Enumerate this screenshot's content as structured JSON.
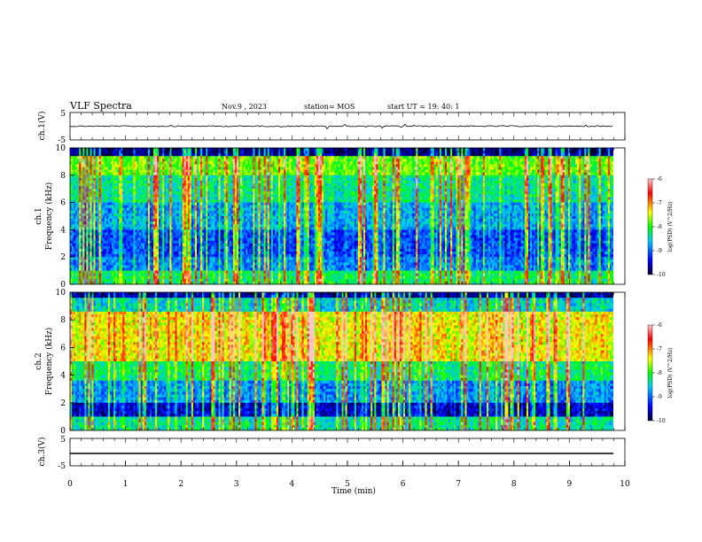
{
  "header": {
    "title": "VLF Spectra",
    "date": "Nov.9 , 2023",
    "station": "station= MOS",
    "start": "start UT = 19: 40: 1"
  },
  "chart_data": [
    {
      "type": "line",
      "name": "ch1-waveform",
      "ylabel": "ch.1(V)",
      "ylim": [
        -5,
        5
      ],
      "yticks": [
        "5",
        "-5"
      ],
      "xlim": [
        0,
        10
      ],
      "note_level": 0
    },
    {
      "type": "heatmap",
      "name": "ch1-spectrogram",
      "ylabel_top": "ch.1",
      "ylabel": "Frequency (kHz)",
      "ylim": [
        0,
        10
      ],
      "yticks": [
        "0",
        "2",
        "4",
        "6",
        "8",
        "10"
      ],
      "xlim": [
        0,
        10
      ],
      "colorbar": {
        "label": "log(PSD) (V^2/Hz)",
        "range": [
          -10,
          -6
        ],
        "ticks": [
          "-6",
          "-7",
          "-8",
          "-9",
          "-10"
        ],
        "colors": [
          "#000030",
          "#0000ff",
          "#00c8ff",
          "#00ff00",
          "#ffff00",
          "#ff0000",
          "#ffc8c8"
        ]
      }
    },
    {
      "type": "heatmap",
      "name": "ch2-spectrogram",
      "ylabel_top": "ch.2",
      "ylabel": "Frequency (kHz)",
      "ylim": [
        0,
        10
      ],
      "yticks": [
        "0",
        "2",
        "4",
        "6",
        "8",
        "10"
      ],
      "xlim": [
        0,
        10
      ],
      "colorbar": {
        "label": "log(PSD) (V^2/Hz)",
        "range": [
          -10,
          -6
        ],
        "ticks": [
          "-6",
          "-7",
          "-8",
          "-9",
          "-10"
        ],
        "colors": [
          "#000030",
          "#0000ff",
          "#00c8ff",
          "#00ff00",
          "#ffff00",
          "#ff0000",
          "#ffc8c8"
        ]
      }
    },
    {
      "type": "line",
      "name": "ch3-waveform",
      "ylabel": "ch.3(V)",
      "ylim": [
        -5,
        5
      ],
      "yticks": [
        "5",
        "-5"
      ],
      "xlim": [
        0,
        10
      ],
      "xlabel": "Time (min)",
      "xticks": [
        "0",
        "1",
        "2",
        "3",
        "4",
        "5",
        "6",
        "7",
        "8",
        "9",
        "10"
      ]
    }
  ]
}
